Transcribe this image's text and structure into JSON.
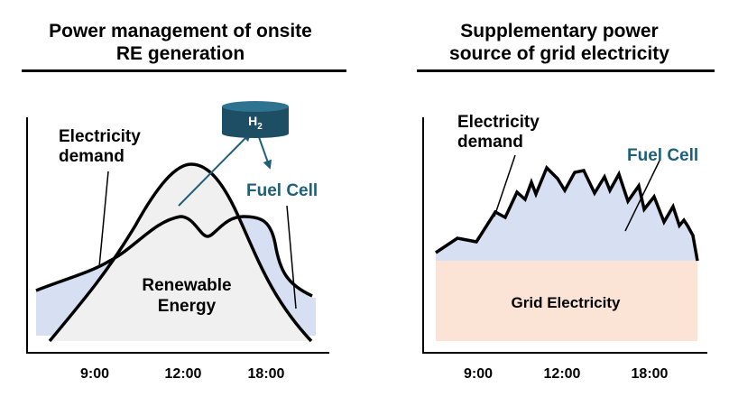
{
  "left_panel": {
    "title_line1": "Power management of onsite",
    "title_line2": "RE generation",
    "label_demand_1": "Electricity",
    "label_demand_2": "demand",
    "label_renewable_1": "Renewable",
    "label_renewable_2": "Energy",
    "label_h2": "H",
    "label_h2_sub": "2",
    "label_fuel_cell": "Fuel Cell",
    "x_ticks": [
      "9:00",
      "12:00",
      "18:00"
    ]
  },
  "right_panel": {
    "title_line1": "Supplementary power",
    "title_line2": "source of grid electricity",
    "label_demand_1": "Electricity",
    "label_demand_2": "demand",
    "label_fuel_cell": "Fuel Cell",
    "label_grid": "Grid Electricity",
    "x_ticks": [
      "9:00",
      "12:00",
      "18:00"
    ]
  },
  "colors": {
    "fuel_cell_fill": "#d6e0f2",
    "renewable_fill": "#f0f0f0",
    "grid_fill": "#fbe3d5",
    "accent_teal": "#1f5f7a",
    "tank_dark": "#1d4e63",
    "tank_light": "#2e7390"
  }
}
